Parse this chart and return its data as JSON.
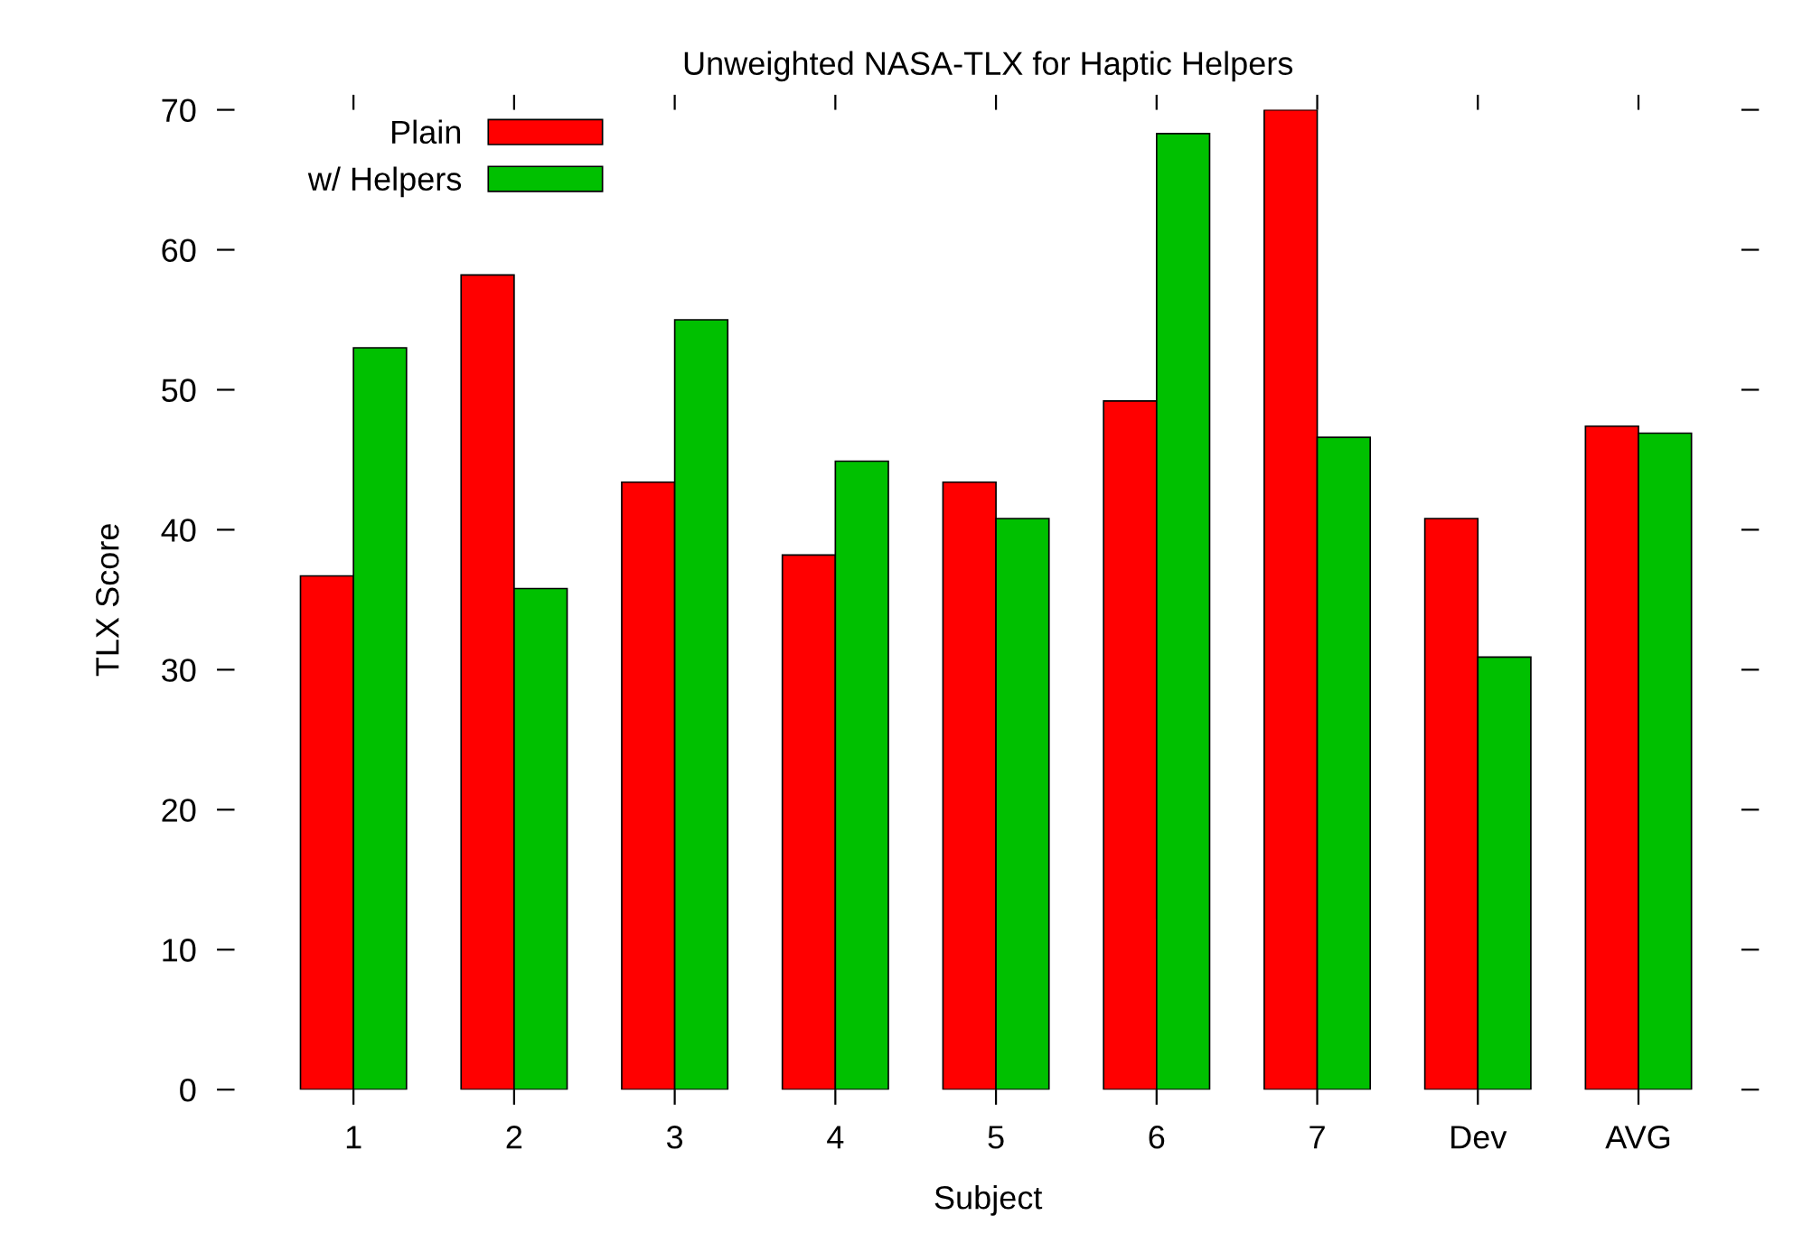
{
  "chart_data": {
    "type": "bar",
    "title": "Unweighted NASA-TLX for Haptic Helpers",
    "xlabel": "Subject",
    "ylabel": "TLX Score",
    "categories": [
      "1",
      "2",
      "3",
      "4",
      "5",
      "6",
      "7",
      "Dev",
      "AVG"
    ],
    "series": [
      {
        "name": "Plain",
        "color": "#ff0000",
        "values": [
          36.7,
          58.2,
          43.4,
          38.2,
          43.4,
          49.2,
          70.0,
          40.8,
          47.4
        ]
      },
      {
        "name": "w/ Helpers",
        "color": "#00c000",
        "values": [
          53.0,
          35.8,
          55.0,
          44.9,
          40.8,
          68.3,
          46.6,
          30.9,
          46.9
        ]
      }
    ],
    "ylim": [
      0,
      70
    ],
    "yticks": [
      0,
      10,
      20,
      30,
      40,
      50,
      60,
      70
    ],
    "grid": false,
    "legend": "top left"
  }
}
